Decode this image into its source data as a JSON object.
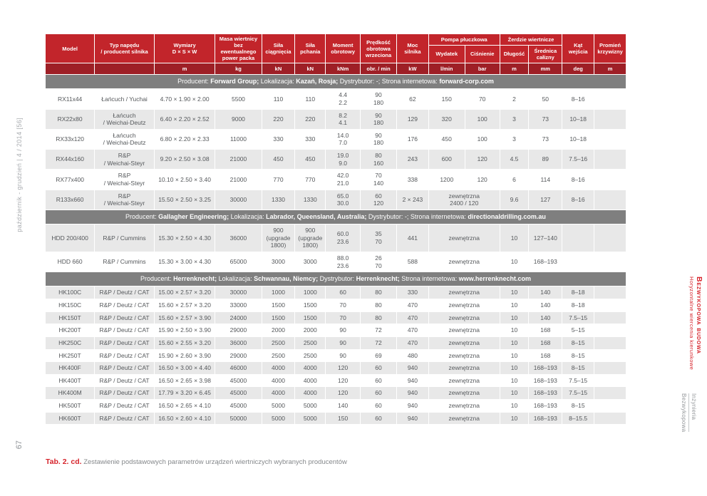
{
  "page": {
    "spine_text": "październik - grudzień | 4 / 2014 [56]",
    "page_number": "67",
    "caption": {
      "label": "Tab. 2. cd.",
      "text": " Zestawienie podstawowych parametrów urządzeń wiertniczych wybranych producentów"
    },
    "right_margin": {
      "section_title": "Bezwykopowa budowa",
      "section_subtitle": "Horyzontalne wiercenia kierunkowe",
      "brand_line1": "Inżynieria",
      "brand_line2": "Bezwykopowa"
    }
  },
  "colors": {
    "header_red": "#c2252b",
    "units_red": "#9e1f26",
    "producer_gray": "#7f7f7f",
    "row_shaded": "#e8e8e8",
    "accent_red": "#d6232b"
  },
  "table": {
    "header": {
      "top": [
        {
          "label": "Model",
          "rowspan": 2
        },
        {
          "label": "Typ napędu\n/ producent silnika",
          "rowspan": 2
        },
        {
          "label": "Wymiary\nD × S × W",
          "rowspan": 2
        },
        {
          "label": "Masa wiertnicy\nbez ewentualnego\npower packa",
          "rowspan": 2
        },
        {
          "label": "Siła\nciągnięcia",
          "rowspan": 2
        },
        {
          "label": "Siła\npchania",
          "rowspan": 2
        },
        {
          "label": "Moment\nobrotowy",
          "rowspan": 2
        },
        {
          "label": "Prędkość\nobrotowa\nwrzeciona",
          "rowspan": 2
        },
        {
          "label": "Moc\nsilnika",
          "rowspan": 2
        },
        {
          "label": "Pompa płuczkowa",
          "colspan": 2
        },
        {
          "label": "Żerdzie wiertnicze",
          "colspan": 2
        },
        {
          "label": "Kąt\nwejścia",
          "rowspan": 2
        },
        {
          "label": "Promień\nkrzywizny",
          "rowspan": 2
        }
      ],
      "sub": [
        "Wydatek",
        "Ciśnienie",
        "Długość",
        "Średnica\ncałizny"
      ],
      "units": [
        "",
        "",
        "m",
        "kg",
        "kN",
        "kN",
        "kNm",
        "obr. / min",
        "kW",
        "l/min",
        "bar",
        "m",
        "mm",
        "deg",
        "m"
      ]
    },
    "sections": [
      {
        "producer": [
          {
            "t": "Producent: "
          },
          {
            "t": "Forward Group;",
            "b": true
          },
          {
            "t": " Lokalizacja: "
          },
          {
            "t": "Kazań, Rosja;",
            "b": true
          },
          {
            "t": " Dystrybutor: -; Strona internetowa: "
          },
          {
            "t": "forward-corp.com",
            "b": true
          }
        ],
        "rows": [
          [
            "RX11x44",
            "Łańcuch / Yuchai",
            "4.70 × 1.90 × 2.00",
            "5500",
            "110",
            "110",
            "4.4\n2.2",
            "90\n180",
            "62",
            "150",
            "70",
            "2",
            "50",
            "8–16",
            ""
          ],
          [
            "RX22x80",
            "Łańcuch\n/ Weichai-Deutz",
            "6.40 × 2.20 × 2.52",
            "9000",
            "220",
            "220",
            "8.2\n4.1",
            "90\n180",
            "129",
            "320",
            "100",
            "3",
            "73",
            "10–18",
            ""
          ],
          [
            "RX33x120",
            "Łańcuch\n/ Weichai-Deutz",
            "6.80 × 2.20 × 2.33",
            "11000",
            "330",
            "330",
            "14.0\n7.0",
            "90\n180",
            "176",
            "450",
            "100",
            "3",
            "73",
            "10–18",
            ""
          ],
          [
            "RX44x160",
            "R&P\n/ Weichai-Steyr",
            "9.20 × 2.50 × 3.08",
            "21000",
            "450",
            "450",
            "19.0\n9.0",
            "80\n160",
            "243",
            "600",
            "120",
            "4.5",
            "89",
            "7.5–16",
            ""
          ],
          [
            "RX77x400",
            "R&P\n/ Weichai-Steyr",
            "10.10 × 2.50 × 3.40",
            "21000",
            "770",
            "770",
            "42.0\n21.0",
            "70\n140",
            "338",
            "1200",
            "120",
            "6",
            "114",
            "8–16",
            ""
          ],
          [
            "R133x660",
            "R&P\n/ Weichai-Steyr",
            "15.50 × 2.50 × 3.25",
            "30000",
            "1330",
            "1330",
            "65.0\n30.0",
            "60\n120",
            "2 × 243",
            {
              "t": "zewnętrzna\n2400 / 120",
              "span": 2
            },
            "9.6",
            "127",
            "8–16",
            ""
          ]
        ]
      },
      {
        "producer": [
          {
            "t": "Producent: "
          },
          {
            "t": "Gallagher Engineering;",
            "b": true
          },
          {
            "t": " Lokalizacja: "
          },
          {
            "t": "Labrador, Queensland, Australia;",
            "b": true
          },
          {
            "t": " Dystrybutor: -; Strona internetowa: "
          },
          {
            "t": "directionaldrilling.com.au",
            "b": true
          }
        ],
        "rows": [
          [
            "HDD 200/400",
            "R&P / Cummins",
            "15.30 × 2.50 × 4.30",
            "36000",
            "900\n(upgrade\n1800)",
            "900\n(upgrade\n1800)",
            "60.0\n23.6",
            "35\n70",
            "441",
            {
              "t": "zewnętrzna",
              "span": 2
            },
            "10",
            "127–140",
            "",
            ""
          ],
          [
            "HDD 660",
            "R&P / Cummins",
            "15.30 × 3.00 × 4.30",
            "65000",
            "3000",
            "3000",
            "88.0\n23.6",
            "26\n70",
            "588",
            {
              "t": "zewnętrzna",
              "span": 2
            },
            "10",
            "168–193",
            "",
            ""
          ]
        ]
      },
      {
        "producer": [
          {
            "t": "Producent: "
          },
          {
            "t": "Herrenknecht;",
            "b": true
          },
          {
            "t": " Lokalizacja: "
          },
          {
            "t": "Schwannau, Niemcy;",
            "b": true
          },
          {
            "t": " Dystrybutor: "
          },
          {
            "t": "Herrenknecht;",
            "b": true
          },
          {
            "t": " Strona internetowa: "
          },
          {
            "t": "www.herrenknecht.com",
            "b": true
          }
        ],
        "rows": [
          [
            "HK100C",
            "R&P / Deutz / CAT",
            "15.00 × 2.57 × 3.20",
            "30000",
            "1000",
            "1000",
            "60",
            "80",
            "330",
            {
              "t": "zewnętrzna",
              "span": 2
            },
            "10",
            "140",
            "8–18",
            ""
          ],
          [
            "HK150C",
            "R&P / Deutz / CAT",
            "15.60 × 2.57 × 3.20",
            "33000",
            "1500",
            "1500",
            "70",
            "80",
            "470",
            {
              "t": "zewnętrzna",
              "span": 2
            },
            "10",
            "140",
            "8–18",
            ""
          ],
          [
            "HK150T",
            "R&P / Deutz / CAT",
            "15.60 × 2.57 × 3.90",
            "24000",
            "1500",
            "1500",
            "70",
            "80",
            "470",
            {
              "t": "zewnętrzna",
              "span": 2
            },
            "10",
            "140",
            "7.5–15",
            ""
          ],
          [
            "HK200T",
            "R&P / Deutz / CAT",
            "15.90 × 2.50 × 3.90",
            "29000",
            "2000",
            "2000",
            "90",
            "72",
            "470",
            {
              "t": "zewnętrzna",
              "span": 2
            },
            "10",
            "168",
            "5–15",
            ""
          ],
          [
            "HK250C",
            "R&P / Deutz / CAT",
            "15.60 × 2.55 × 3.20",
            "36000",
            "2500",
            "2500",
            "90",
            "72",
            "470",
            {
              "t": "zewnętrzna",
              "span": 2
            },
            "10",
            "168",
            "8–15",
            ""
          ],
          [
            "HK250T",
            "R&P / Deutz / CAT",
            "15.90 × 2.60 × 3.90",
            "29000",
            "2500",
            "2500",
            "90",
            "69",
            "480",
            {
              "t": "zewnętrzna",
              "span": 2
            },
            "10",
            "168",
            "8–15",
            ""
          ],
          [
            "HK400F",
            "R&P / Deutz / CAT",
            "16.50 × 3.00 × 4.40",
            "46000",
            "4000",
            "4000",
            "120",
            "60",
            "940",
            {
              "t": "zewnętrzna",
              "span": 2
            },
            "10",
            "168–193",
            "8–15",
            ""
          ],
          [
            "HK400T",
            "R&P / Deutz / CAT",
            "16.50 × 2.65 × 3.98",
            "45000",
            "4000",
            "4000",
            "120",
            "60",
            "940",
            {
              "t": "zewnętrzna",
              "span": 2
            },
            "10",
            "168–193",
            "7.5–15",
            ""
          ],
          [
            "HK400M",
            "R&P / Deutz / CAT",
            "17.79 × 3.20 × 6.45",
            "45000",
            "4000",
            "4000",
            "120",
            "60",
            "940",
            {
              "t": "zewnętrzna",
              "span": 2
            },
            "10",
            "168–193",
            "7.5–15",
            ""
          ],
          [
            "HK500T",
            "R&P / Deutz / CAT",
            "16.50 × 2.65 × 4.10",
            "45000",
            "5000",
            "5000",
            "140",
            "60",
            "940",
            {
              "t": "zewnętrzna",
              "span": 2
            },
            "10",
            "168–193",
            "8–15",
            ""
          ],
          [
            "HK600T",
            "R&P / Deutz / CAT",
            "16.50 × 2.60 × 4.10",
            "50000",
            "5000",
            "5000",
            "150",
            "60",
            "940",
            {
              "t": "zewnętrzna",
              "span": 2
            },
            "10",
            "168–193",
            "8–15.5",
            ""
          ]
        ]
      }
    ]
  }
}
